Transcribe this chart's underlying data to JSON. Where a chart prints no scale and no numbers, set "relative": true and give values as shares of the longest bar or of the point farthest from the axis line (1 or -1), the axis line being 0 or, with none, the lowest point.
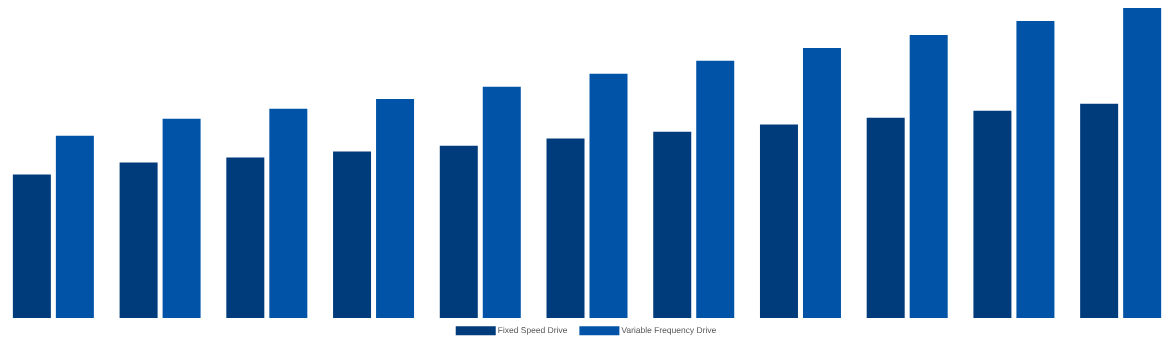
{
  "chart_data": {
    "type": "bar",
    "relative": true,
    "legend": "bottom",
    "categories": [
      null,
      null,
      null,
      null,
      null,
      null,
      null,
      null,
      null,
      null,
      null
    ],
    "series": [
      {
        "name": "Fixed Speed Drive",
        "color": "#003b7b",
        "values": [
          0.463,
          0.502,
          0.518,
          0.537,
          0.556,
          0.579,
          0.601,
          0.624,
          0.646,
          0.669,
          0.691
        ]
      },
      {
        "name": "Variable Frequency Drive",
        "color": "#0053a6",
        "values": [
          0.588,
          0.643,
          0.675,
          0.707,
          0.746,
          0.788,
          0.83,
          0.871,
          0.913,
          0.958,
          1
        ]
      }
    ]
  }
}
